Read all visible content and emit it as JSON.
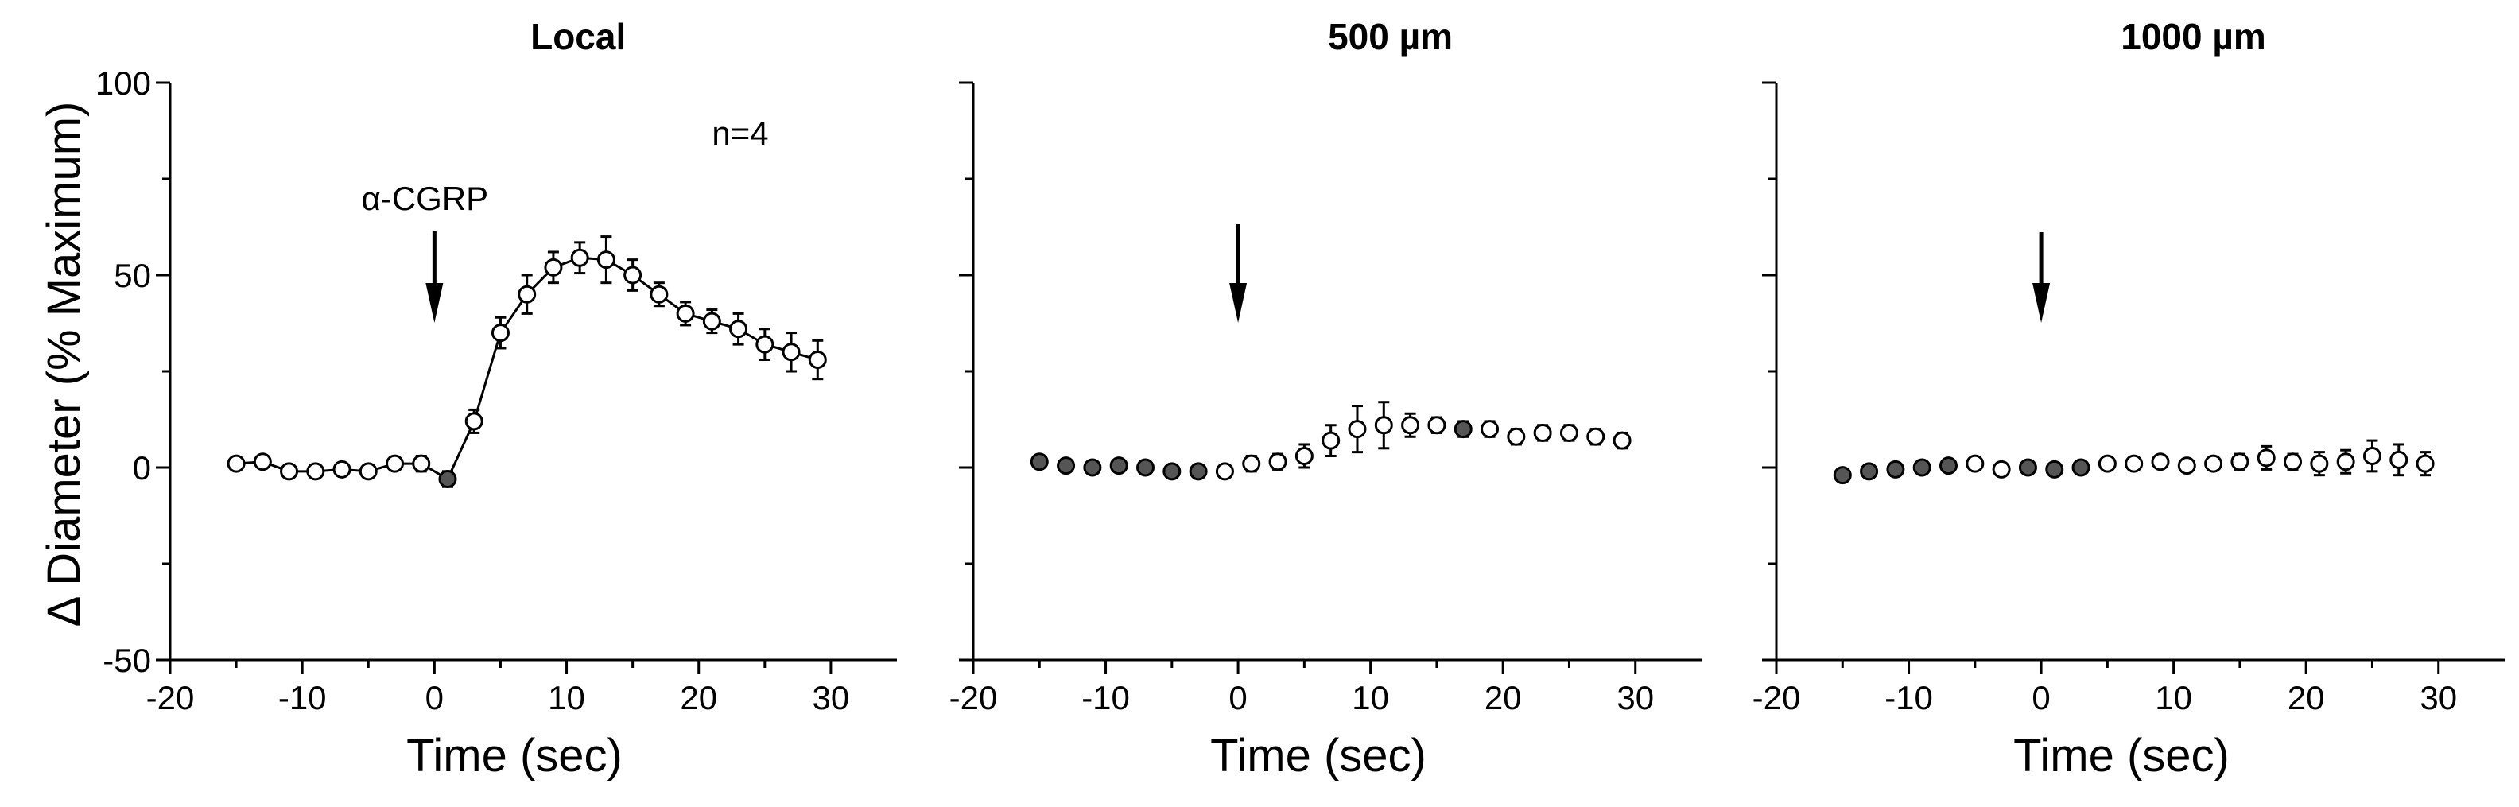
{
  "figure": {
    "ylabel": "Δ Diameter (% Maximum)",
    "xlabel": "Time (sec)"
  },
  "chart_data": [
    {
      "type": "line",
      "title": "Local",
      "xlabel": "Time (sec)",
      "ylabel": "Δ Diameter (% Maximum)",
      "xlim": [
        -20,
        35
      ],
      "ylim": [
        -50,
        100
      ],
      "xticks": [
        -20,
        -10,
        0,
        10,
        20,
        30
      ],
      "yticks": [
        -50,
        0,
        50,
        100
      ],
      "annotations": {
        "n_label": "n=4",
        "arrow_label": "α-CGRP",
        "arrow_at": 0
      },
      "connected": true,
      "x": [
        -15,
        -13,
        -11,
        -9,
        -7,
        -5,
        -3,
        -1,
        1,
        3,
        5,
        7,
        9,
        11,
        13,
        15,
        17,
        19,
        21,
        23,
        25,
        27,
        29
      ],
      "y": [
        1,
        1.5,
        -1,
        -1,
        -0.5,
        -1,
        1,
        1,
        -3,
        12,
        35,
        45,
        52,
        54.5,
        54,
        50,
        45,
        40,
        38,
        36,
        32,
        30,
        28
      ],
      "err": [
        1.5,
        1.5,
        1.5,
        1.5,
        1.5,
        1.5,
        1.5,
        2,
        2,
        3,
        4,
        5,
        4,
        4,
        6,
        4,
        3,
        3,
        3,
        4,
        4,
        5,
        5
      ],
      "filled": [
        false,
        false,
        false,
        false,
        false,
        false,
        false,
        false,
        true,
        false,
        false,
        false,
        false,
        false,
        false,
        false,
        false,
        false,
        false,
        false,
        false,
        false,
        false
      ]
    },
    {
      "type": "scatter",
      "title": "500 µm",
      "xlabel": "Time (sec)",
      "xlim": [
        -20,
        35
      ],
      "ylim": [
        -50,
        100
      ],
      "xticks": [
        -20,
        -10,
        0,
        10,
        20,
        30
      ],
      "annotations": {
        "arrow_at": 0
      },
      "connected": false,
      "x": [
        -15,
        -13,
        -11,
        -9,
        -7,
        -5,
        -3,
        -1,
        1,
        3,
        5,
        7,
        9,
        11,
        13,
        15,
        17,
        19,
        21,
        23,
        25,
        27,
        29
      ],
      "y": [
        1.5,
        0.5,
        0,
        0.5,
        0,
        -1,
        -1,
        -1,
        1,
        1.5,
        3,
        7,
        10,
        11,
        11,
        11,
        10,
        10,
        8,
        9,
        9,
        8,
        7
      ],
      "err": [
        1.5,
        1.5,
        1.5,
        1.5,
        1.5,
        1.5,
        1.5,
        1.5,
        2,
        2,
        3,
        4,
        6,
        6,
        3,
        2,
        2,
        2,
        2,
        2,
        2,
        2,
        2
      ],
      "filled": [
        true,
        true,
        true,
        true,
        true,
        true,
        true,
        false,
        false,
        false,
        false,
        false,
        false,
        false,
        false,
        false,
        true,
        false,
        false,
        false,
        false,
        false,
        false
      ]
    },
    {
      "type": "scatter",
      "title": "1000 µm",
      "xlabel": "Time (sec)",
      "xlim": [
        -20,
        35
      ],
      "ylim": [
        -50,
        100
      ],
      "xticks": [
        -20,
        -10,
        0,
        10,
        20,
        30
      ],
      "annotations": {
        "arrow_at": 0
      },
      "connected": false,
      "x": [
        -15,
        -13,
        -11,
        -9,
        -7,
        -5,
        -3,
        -1,
        1,
        3,
        5,
        7,
        9,
        11,
        13,
        15,
        17,
        19,
        21,
        23,
        25,
        27,
        29
      ],
      "y": [
        -2,
        -1,
        -0.5,
        0,
        0.5,
        1,
        -0.5,
        0,
        -0.5,
        0,
        1,
        1,
        1.5,
        0.5,
        1,
        1.5,
        2.5,
        1.5,
        1,
        1.5,
        3,
        2,
        1
      ],
      "err": [
        1.5,
        1.5,
        1.5,
        1.5,
        1.5,
        1.5,
        1.5,
        1.5,
        1.5,
        1.5,
        1.5,
        1.5,
        1.5,
        1.5,
        1.5,
        2,
        3,
        2,
        3,
        3,
        4,
        4,
        3
      ],
      "filled": [
        true,
        true,
        true,
        true,
        true,
        false,
        false,
        true,
        true,
        true,
        false,
        false,
        false,
        false,
        false,
        false,
        false,
        false,
        false,
        false,
        false,
        false,
        false
      ]
    }
  ]
}
